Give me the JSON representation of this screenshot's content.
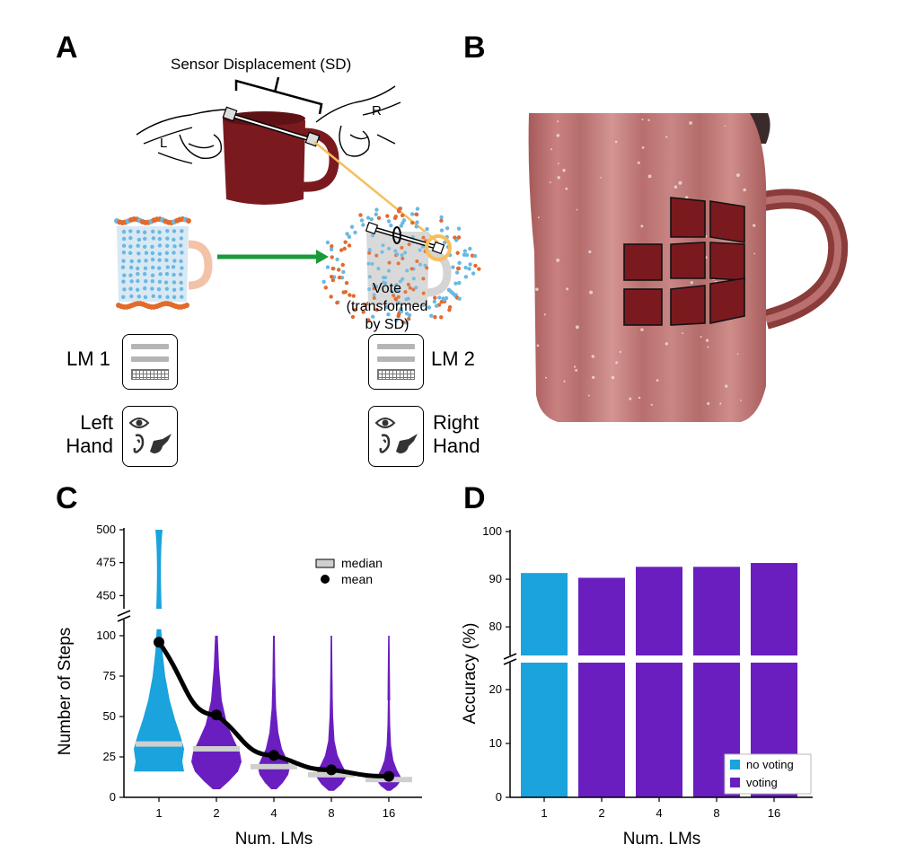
{
  "panels": {
    "a": "A",
    "b": "B",
    "c": "C",
    "d": "D"
  },
  "panel_a": {
    "sensor_displacement": "Sensor Displacement (SD)",
    "left_hand_letter": "L",
    "right_hand_letter": "R",
    "vote_label": "Vote",
    "vote_sub_label": "(transformed",
    "vote_sub_label2": "by SD)",
    "lm1": "LM 1",
    "lm2": "LM 2",
    "left_hand_line1": "Left",
    "left_hand_line2": "Hand",
    "right_hand_line1": "Right",
    "right_hand_line2": "Hand",
    "colors": {
      "mug": "#7a1a1f",
      "blue_points": "#6ab8e3",
      "orange_points": "#e26a2c",
      "arrow_green": "#1a9a3b",
      "displacement_line": "#f6bf5a",
      "sensor_arrow": "#29a3dd"
    }
  },
  "chart_data": [
    {
      "panel": "C",
      "type": "violin",
      "categories": [
        "1",
        "2",
        "4",
        "8",
        "16"
      ],
      "xlabel": "Num. LMs",
      "ylabel": "Number of Steps",
      "y_ticks_lower": [
        "0",
        "25",
        "50",
        "75",
        "100"
      ],
      "y_ticks_upper": [
        "450",
        "475",
        "500"
      ],
      "ylim_lower": [
        0,
        100
      ],
      "ylim_upper": [
        440,
        500
      ],
      "axis_break": true,
      "legend": {
        "median": "median",
        "mean": "mean",
        "placement": "top-right"
      },
      "mean": [
        96,
        51,
        26,
        17,
        13
      ],
      "median": [
        33,
        30,
        19,
        14,
        11
      ],
      "colors": [
        "#1aa3dd",
        "#6a1ec0",
        "#6a1ec0",
        "#6a1ec0",
        "#6a1ec0"
      ]
    },
    {
      "panel": "D",
      "type": "bar",
      "categories": [
        "1",
        "2",
        "4",
        "8",
        "16"
      ],
      "values": [
        91.3,
        90.3,
        92.6,
        92.6,
        93.4
      ],
      "xlabel": "Num. LMs",
      "ylabel": "Accuracy (%)",
      "y_ticks_lower": [
        "0",
        "10",
        "20"
      ],
      "y_ticks_upper": [
        "80",
        "90",
        "100"
      ],
      "ylim_lower": [
        0,
        25
      ],
      "ylim_upper": [
        74,
        100
      ],
      "axis_break": true,
      "legend": {
        "no_voting": "no voting",
        "voting": "voting",
        "placement": "bottom-right"
      },
      "colors": [
        "#1aa3dd",
        "#6a1ec0",
        "#6a1ec0",
        "#6a1ec0",
        "#6a1ec0"
      ]
    }
  ]
}
